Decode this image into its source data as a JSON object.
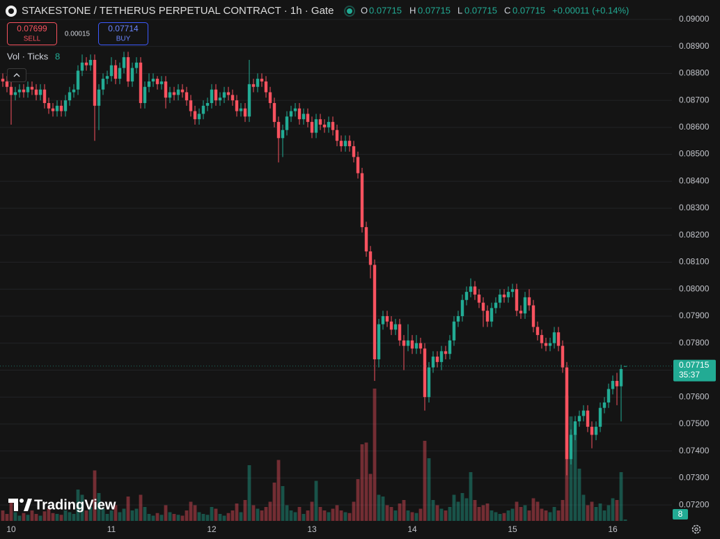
{
  "chart_data": {
    "type": "candlestick",
    "title": "STAKESTONE / TETHERUS PERPETUAL CONTRACT · 1h · Gate",
    "ohlc_letters": [
      "O",
      "H",
      "L",
      "C"
    ],
    "change": "+0.00011 (+0.14%)",
    "countdown": "35:37",
    "volume_label": "Vol · Ticks",
    "categories": [
      null,
      null,
      "10",
      null,
      null,
      null,
      null,
      null,
      null,
      null,
      null,
      null,
      null,
      null,
      null,
      null,
      null,
      null,
      null,
      null,
      null,
      null,
      null,
      null,
      null,
      null,
      "11",
      null,
      null,
      null,
      null,
      null,
      null,
      null,
      null,
      null,
      null,
      null,
      null,
      null,
      null,
      null,
      null,
      null,
      null,
      null,
      null,
      null,
      null,
      null,
      "12",
      null,
      null,
      null,
      null,
      null,
      null,
      null,
      null,
      null,
      null,
      null,
      null,
      null,
      null,
      null,
      null,
      null,
      null,
      null,
      null,
      null,
      null,
      null,
      "13",
      null,
      null,
      null,
      null,
      null,
      null,
      null,
      null,
      null,
      null,
      null,
      null,
      null,
      null,
      null,
      null,
      null,
      null,
      null,
      null,
      null,
      null,
      null,
      "14",
      null,
      null,
      null,
      null,
      null,
      null,
      null,
      null,
      null,
      null,
      null,
      null,
      null,
      null,
      null,
      null,
      null,
      null,
      null,
      null,
      null,
      null,
      null,
      "15",
      null,
      null,
      null,
      null,
      null,
      null,
      null,
      null,
      null,
      null,
      null,
      null,
      null,
      null,
      null,
      null,
      null,
      null,
      null,
      null,
      null,
      null,
      null,
      "16",
      null,
      null,
      null
    ],
    "open": [
      0.0878,
      0.0877,
      0.0875,
      0.0872,
      0.0873,
      0.0874,
      0.0873,
      0.0875,
      0.0874,
      0.0872,
      0.0874,
      0.0869,
      0.0867,
      0.0866,
      0.0868,
      0.0866,
      0.087,
      0.0873,
      0.0874,
      0.0881,
      0.0884,
      0.0883,
      0.0885,
      0.0868,
      0.0874,
      0.0878,
      0.0879,
      0.0883,
      0.0878,
      0.0882,
      0.0886,
      0.0877,
      0.0882,
      0.0884,
      0.0869,
      0.0875,
      0.0877,
      0.0878,
      0.0876,
      0.0877,
      0.0871,
      0.0873,
      0.0872,
      0.0874,
      0.0873,
      0.087,
      0.0866,
      0.0863,
      0.0865,
      0.0868,
      0.0869,
      0.0874,
      0.087,
      0.0871,
      0.0873,
      0.0872,
      0.087,
      0.0866,
      0.0867,
      0.0864,
      0.0876,
      0.0875,
      0.0878,
      0.0877,
      0.0873,
      0.0869,
      0.0862,
      0.0856,
      0.0859,
      0.0864,
      0.0866,
      0.0867,
      0.0863,
      0.0865,
      0.0862,
      0.0858,
      0.0863,
      0.0861,
      0.086,
      0.0862,
      0.0859,
      0.0855,
      0.0853,
      0.0855,
      0.0853,
      0.0849,
      0.0843,
      0.0823,
      0.0814,
      0.0809,
      0.0774,
      0.0787,
      0.079,
      0.0788,
      0.0785,
      0.0787,
      0.0781,
      0.0779,
      0.0781,
      0.0778,
      0.078,
      0.0778,
      0.076,
      0.0771,
      0.0775,
      0.0773,
      0.0777,
      0.0776,
      0.0781,
      0.0788,
      0.079,
      0.0796,
      0.0799,
      0.0801,
      0.0798,
      0.0795,
      0.0792,
      0.0788,
      0.0793,
      0.0795,
      0.0798,
      0.0797,
      0.0799,
      0.08,
      0.0792,
      0.0791,
      0.0797,
      0.0794,
      0.0786,
      0.0783,
      0.078,
      0.0779,
      0.078,
      0.0784,
      0.0779,
      0.0771,
      0.0737,
      0.0746,
      0.0751,
      0.0753,
      0.0755,
      0.0749,
      0.0746,
      0.0749,
      0.0756,
      0.0758,
      0.0763,
      0.0766,
      0.0764,
      0.07715
    ],
    "high": [
      0.088,
      0.0879,
      0.0877,
      0.0875,
      0.0876,
      0.0876,
      0.0877,
      0.0877,
      0.0876,
      0.0876,
      0.0876,
      0.0871,
      0.0869,
      0.087,
      0.087,
      0.0872,
      0.0875,
      0.0876,
      0.0883,
      0.0887,
      0.0886,
      0.0887,
      0.0887,
      0.0876,
      0.088,
      0.0881,
      0.0886,
      0.0885,
      0.0884,
      0.0888,
      0.0888,
      0.0884,
      0.0886,
      0.0886,
      0.0877,
      0.088,
      0.088,
      0.0879,
      0.0879,
      0.0879,
      0.0875,
      0.0875,
      0.0876,
      0.0876,
      0.0875,
      0.0872,
      0.0868,
      0.0867,
      0.087,
      0.0871,
      0.0876,
      0.0876,
      0.0873,
      0.0875,
      0.0875,
      0.0874,
      0.0872,
      0.0869,
      0.0869,
      0.0885,
      0.0878,
      0.088,
      0.088,
      0.0879,
      0.0875,
      0.0871,
      0.0864,
      0.0861,
      0.0866,
      0.0868,
      0.0869,
      0.0869,
      0.0867,
      0.0867,
      0.0864,
      0.0865,
      0.0865,
      0.0863,
      0.0864,
      0.0864,
      0.0861,
      0.0857,
      0.0857,
      0.0857,
      0.0855,
      0.0851,
      0.0845,
      0.0825,
      0.0816,
      0.0811,
      0.0789,
      0.0792,
      0.0792,
      0.079,
      0.0789,
      0.0789,
      0.0783,
      0.0787,
      0.0783,
      0.0783,
      0.0782,
      0.078,
      0.0773,
      0.0777,
      0.0777,
      0.0779,
      0.0779,
      0.0783,
      0.079,
      0.0792,
      0.0798,
      0.0801,
      0.0804,
      0.0803,
      0.08,
      0.0797,
      0.0794,
      0.0795,
      0.0797,
      0.08,
      0.08,
      0.0801,
      0.0802,
      0.0802,
      0.0794,
      0.0799,
      0.08,
      0.0796,
      0.0788,
      0.0785,
      0.0782,
      0.0782,
      0.0786,
      0.0786,
      0.0781,
      0.0773,
      0.0748,
      0.0753,
      0.0755,
      0.0757,
      0.0757,
      0.0751,
      0.0751,
      0.0758,
      0.076,
      0.0765,
      0.0768,
      0.0769,
      0.0772,
      0.07715
    ],
    "low": [
      0.0875,
      0.0873,
      0.0861,
      0.087,
      0.0871,
      0.0871,
      0.0871,
      0.0872,
      0.087,
      0.087,
      0.0867,
      0.0865,
      0.0864,
      0.0864,
      0.0864,
      0.0864,
      0.0868,
      0.0871,
      0.0872,
      0.0879,
      0.0881,
      0.0881,
      0.0855,
      0.0859,
      0.0872,
      0.0876,
      0.0877,
      0.0876,
      0.0876,
      0.088,
      0.0875,
      0.0875,
      0.088,
      0.0867,
      0.0867,
      0.0873,
      0.0875,
      0.0874,
      0.0874,
      0.0867,
      0.0869,
      0.087,
      0.087,
      0.0871,
      0.0868,
      0.0864,
      0.0861,
      0.0861,
      0.0863,
      0.0866,
      0.0867,
      0.0868,
      0.0868,
      0.0869,
      0.087,
      0.0868,
      0.0864,
      0.0864,
      0.0862,
      0.0862,
      0.0873,
      0.0873,
      0.0875,
      0.0871,
      0.0867,
      0.086,
      0.0847,
      0.0849,
      0.0857,
      0.0862,
      0.0864,
      0.0861,
      0.0861,
      0.086,
      0.0856,
      0.0856,
      0.0859,
      0.0858,
      0.0858,
      0.0857,
      0.0853,
      0.0851,
      0.0851,
      0.0851,
      0.0847,
      0.0841,
      0.0821,
      0.0812,
      0.0804,
      0.0766,
      0.0771,
      0.0785,
      0.0786,
      0.0783,
      0.0783,
      0.0779,
      0.077,
      0.0777,
      0.0776,
      0.0776,
      0.0776,
      0.0755,
      0.0758,
      0.0769,
      0.0771,
      0.077,
      0.0774,
      0.0774,
      0.0779,
      0.0786,
      0.0788,
      0.0794,
      0.0797,
      0.0796,
      0.0793,
      0.0786,
      0.0786,
      0.0786,
      0.0791,
      0.0793,
      0.0795,
      0.0795,
      0.0797,
      0.079,
      0.0789,
      0.0789,
      0.0792,
      0.0784,
      0.0781,
      0.0778,
      0.0777,
      0.0777,
      0.0778,
      0.0777,
      0.0769,
      0.0731,
      0.0735,
      0.0744,
      0.0749,
      0.0751,
      0.0747,
      0.0741,
      0.0744,
      0.0747,
      0.0754,
      0.0756,
      0.0761,
      0.0757,
      0.0751,
      0.07715
    ],
    "close": [
      0.0877,
      0.0875,
      0.0872,
      0.0873,
      0.0874,
      0.0873,
      0.0875,
      0.0874,
      0.0872,
      0.0874,
      0.0869,
      0.0867,
      0.0866,
      0.0868,
      0.0866,
      0.087,
      0.0873,
      0.0874,
      0.0881,
      0.0884,
      0.0883,
      0.0885,
      0.0868,
      0.0874,
      0.0878,
      0.0879,
      0.0883,
      0.0878,
      0.0882,
      0.0886,
      0.0877,
      0.0882,
      0.0884,
      0.0869,
      0.0875,
      0.0877,
      0.0878,
      0.0876,
      0.0877,
      0.0871,
      0.0873,
      0.0872,
      0.0874,
      0.0873,
      0.087,
      0.0866,
      0.0863,
      0.0865,
      0.0868,
      0.0869,
      0.0874,
      0.087,
      0.0871,
      0.0873,
      0.0872,
      0.087,
      0.0866,
      0.0867,
      0.0864,
      0.0876,
      0.0875,
      0.0878,
      0.0877,
      0.0873,
      0.0869,
      0.0862,
      0.0856,
      0.0859,
      0.0864,
      0.0866,
      0.0867,
      0.0863,
      0.0865,
      0.0862,
      0.0858,
      0.0863,
      0.0861,
      0.086,
      0.0862,
      0.0859,
      0.0855,
      0.0853,
      0.0855,
      0.0853,
      0.0849,
      0.0843,
      0.0823,
      0.0814,
      0.0809,
      0.0774,
      0.0787,
      0.079,
      0.0788,
      0.0785,
      0.0787,
      0.0781,
      0.0779,
      0.0781,
      0.0778,
      0.078,
      0.0778,
      0.076,
      0.0771,
      0.0775,
      0.0773,
      0.0777,
      0.0776,
      0.0781,
      0.0788,
      0.079,
      0.0796,
      0.0799,
      0.0801,
      0.0798,
      0.0795,
      0.0792,
      0.0788,
      0.0793,
      0.0795,
      0.0798,
      0.0797,
      0.0799,
      0.08,
      0.0792,
      0.0791,
      0.0797,
      0.0794,
      0.0786,
      0.0783,
      0.078,
      0.0779,
      0.078,
      0.0784,
      0.0779,
      0.0771,
      0.0737,
      0.0746,
      0.0751,
      0.0753,
      0.0755,
      0.0749,
      0.0746,
      0.0749,
      0.0756,
      0.0758,
      0.0763,
      0.0766,
      0.0764,
      0.07704,
      0.07715
    ],
    "volume": [
      60,
      40,
      120,
      50,
      30,
      45,
      35,
      60,
      40,
      30,
      55,
      70,
      45,
      40,
      35,
      60,
      50,
      40,
      180,
      150,
      60,
      80,
      290,
      160,
      70,
      40,
      60,
      90,
      50,
      70,
      140,
      60,
      70,
      150,
      80,
      40,
      30,
      45,
      35,
      90,
      50,
      40,
      35,
      30,
      60,
      110,
      90,
      50,
      40,
      35,
      80,
      70,
      40,
      30,
      45,
      60,
      100,
      50,
      120,
      320,
      90,
      70,
      60,
      80,
      110,
      220,
      350,
      200,
      90,
      60,
      50,
      80,
      40,
      60,
      110,
      230,
      80,
      60,
      50,
      70,
      90,
      60,
      50,
      45,
      110,
      240,
      440,
      450,
      270,
      760,
      150,
      140,
      90,
      80,
      60,
      100,
      120,
      60,
      50,
      45,
      70,
      460,
      360,
      120,
      90,
      70,
      60,
      80,
      150,
      110,
      160,
      130,
      280,
      120,
      80,
      90,
      100,
      60,
      50,
      40,
      45,
      60,
      70,
      110,
      80,
      90,
      60,
      130,
      110,
      70,
      60,
      50,
      80,
      60,
      120,
      720,
      600,
      500,
      300,
      150,
      90,
      110,
      80,
      100,
      60,
      90,
      130,
      120,
      280,
      8
    ],
    "volume_ylim": [
      0,
      800
    ],
    "ylim": [
      0.07141,
      0.09072
    ],
    "yticks": [
      {
        "value": 0.072,
        "label": "0.07200"
      },
      {
        "value": 0.073,
        "label": "0.07300"
      },
      {
        "value": 0.074,
        "label": "0.07400"
      },
      {
        "value": 0.075,
        "label": "0.07500"
      },
      {
        "value": 0.076,
        "label": "0.07600"
      },
      {
        "value": 0.077,
        "label": "0.07700"
      },
      {
        "value": 0.078,
        "label": "0.07800"
      },
      {
        "value": 0.079,
        "label": "0.07900"
      },
      {
        "value": 0.08,
        "label": "0.08000"
      },
      {
        "value": 0.081,
        "label": "0.08100"
      },
      {
        "value": 0.082,
        "label": "0.08200"
      },
      {
        "value": 0.083,
        "label": "0.08300"
      },
      {
        "value": 0.084,
        "label": "0.08400"
      },
      {
        "value": 0.085,
        "label": "0.08500"
      },
      {
        "value": 0.086,
        "label": "0.08600"
      },
      {
        "value": 0.087,
        "label": "0.08700"
      },
      {
        "value": 0.088,
        "label": "0.08800"
      },
      {
        "value": 0.089,
        "label": "0.08900"
      },
      {
        "value": 0.09,
        "label": "0.09000"
      }
    ],
    "grid": true,
    "up_color": "#22ab94",
    "down_color": "#f7525f"
  },
  "trade": {
    "sell_price": 0.07699,
    "sell_label": "SELL",
    "spread": 0.00015,
    "buy_price": 0.07714,
    "buy_label": "BUY"
  },
  "brand": "TradingView"
}
